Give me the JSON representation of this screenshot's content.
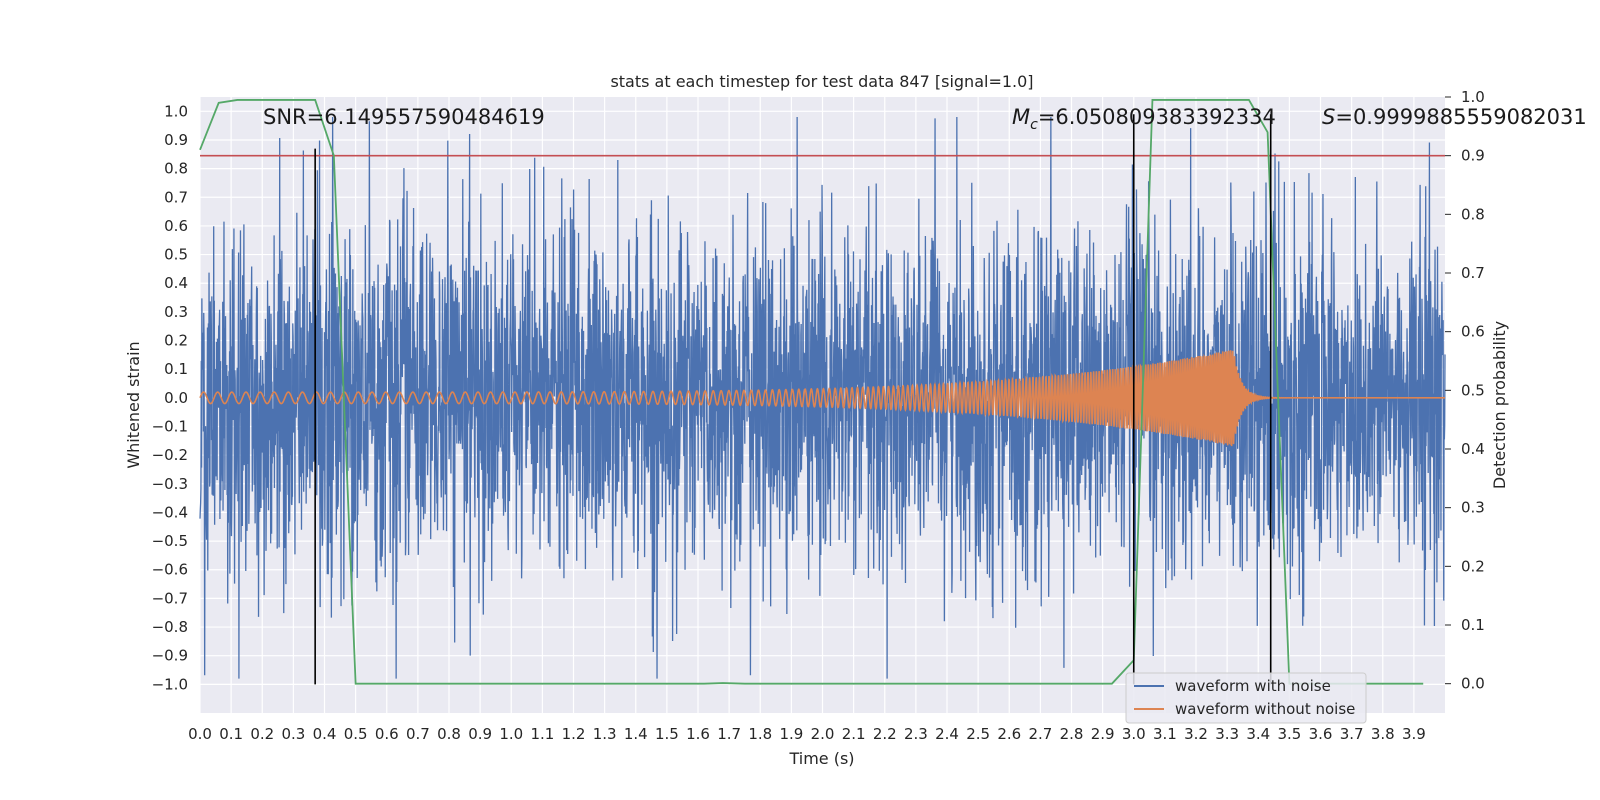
{
  "chart_data": {
    "type": "line",
    "title": "stats at each timestep for test data 847 [signal=1.0]",
    "xlabel": "Time (s)",
    "ylabel_left": "Whitened strain",
    "ylabel_right": "Detection probability",
    "xlim": [
      0.0,
      4.0
    ],
    "ylim_left": [
      -1.1,
      1.05
    ],
    "ylim_right": [
      -0.05,
      1.0
    ],
    "xticks": [
      0.0,
      0.1,
      0.2,
      0.3,
      0.4,
      0.5,
      0.6,
      0.7,
      0.8,
      0.9,
      1.0,
      1.1,
      1.2,
      1.3,
      1.4,
      1.5,
      1.6,
      1.7,
      1.8,
      1.9,
      2.0,
      2.1,
      2.2,
      2.3,
      2.4,
      2.5,
      2.6,
      2.7,
      2.8,
      2.9,
      3.0,
      3.1,
      3.2,
      3.3,
      3.4,
      3.5,
      3.6,
      3.7,
      3.8,
      3.9
    ],
    "xtick_labels": [
      "0.0",
      "0.1",
      "0.2",
      "0.3",
      "0.4",
      "0.5",
      "0.6",
      "0.7",
      "0.8",
      "0.9",
      "1.0",
      "1.1",
      "1.2",
      "1.3",
      "1.4",
      "1.5",
      "1.6",
      "1.7",
      "1.8",
      "1.9",
      "2.0",
      "2.1",
      "2.2",
      "2.3",
      "2.4",
      "2.5",
      "2.6",
      "2.7",
      "2.8",
      "2.9",
      "3.0",
      "3.1",
      "3.2",
      "3.3",
      "3.4",
      "3.5",
      "3.6",
      "3.7",
      "3.8",
      "3.9"
    ],
    "yticks_left": [
      1.0,
      0.9,
      0.8,
      0.7,
      0.6,
      0.5,
      0.4,
      0.3,
      0.2,
      0.1,
      0.0,
      -0.1,
      -0.2,
      -0.3,
      -0.4,
      -0.5,
      -0.6,
      -0.7,
      -0.8,
      -0.9,
      -1.0
    ],
    "ytick_labels_left": [
      "1.0",
      "0.9",
      "0.8",
      "0.7",
      "0.6",
      "0.5",
      "0.4",
      "0.3",
      "0.2",
      "0.1",
      "0.0",
      "−0.1",
      "−0.2",
      "−0.3",
      "−0.4",
      "−0.5",
      "−0.6",
      "−0.7",
      "−0.8",
      "−0.9",
      "−1.0"
    ],
    "yticks_right": [
      0.0,
      0.1,
      0.2,
      0.3,
      0.4,
      0.5,
      0.6,
      0.7,
      0.8,
      0.9,
      1.0
    ],
    "ytick_labels_right": [
      "0.0",
      "0.1",
      "0.2",
      "0.3",
      "0.4",
      "0.5",
      "0.6",
      "0.7",
      "0.8",
      "0.9",
      "1.0"
    ],
    "series": [
      {
        "name": "waveform with noise",
        "axis": "left",
        "color": "#4c72b0",
        "description_values": {
          "t_start": 0.0,
          "t_end": 4.0,
          "approx_std": 0.3,
          "max_abs": 0.98
        }
      },
      {
        "name": "waveform without noise",
        "axis": "left",
        "color": "#dd8452",
        "chirp": {
          "t_start": 0.0,
          "t_merger": 3.32,
          "amp_start": 0.02,
          "amp_peak": 0.17,
          "freq_start": 22,
          "freq_end": 160
        }
      },
      {
        "name": "detection probability",
        "axis": "right",
        "color": "#55a868",
        "x": [
          0.0,
          0.06,
          0.12,
          0.18,
          0.25,
          0.31,
          0.37,
          0.43,
          0.5,
          0.56,
          0.62,
          0.68,
          0.75,
          0.81,
          0.87,
          0.93,
          1.0,
          1.06,
          1.12,
          1.18,
          1.25,
          1.31,
          1.37,
          1.43,
          1.5,
          1.56,
          1.62,
          1.68,
          1.75,
          1.81,
          1.87,
          1.93,
          2.0,
          2.06,
          2.12,
          2.18,
          2.25,
          2.31,
          2.37,
          2.43,
          2.5,
          2.56,
          2.62,
          2.68,
          2.75,
          2.81,
          2.87,
          2.93,
          3.0,
          3.06,
          3.12,
          3.18,
          3.25,
          3.31,
          3.37,
          3.43,
          3.5,
          3.56,
          3.62,
          3.68,
          3.75,
          3.81,
          3.87,
          3.93
        ],
        "y": [
          0.91,
          0.99,
          0.995,
          0.995,
          0.995,
          0.995,
          0.995,
          0.9,
          0.0,
          0.0,
          0.0,
          0.0,
          0.0,
          0.0,
          0.0,
          0.0,
          0.0,
          0.0,
          0.0,
          0.0,
          0.0,
          0.0,
          0.0,
          0.0,
          0.0,
          0.0,
          0.0,
          0.001,
          0.0,
          0.0,
          0.0,
          0.0,
          0.0,
          0.0,
          0.0,
          0.0,
          0.0,
          0.0,
          0.0,
          0.0,
          0.0,
          0.0,
          0.0,
          0.0,
          0.0,
          0.0,
          0.0,
          0.0,
          0.04,
          0.995,
          0.995,
          0.995,
          0.995,
          0.995,
          0.995,
          0.94,
          0.0,
          0.0,
          0.0,
          0.0,
          0.0,
          0.0,
          0.0,
          0.0
        ]
      }
    ],
    "threshold": {
      "axis": "right",
      "value": 0.9,
      "color": "#c44e52"
    },
    "vlines": [
      {
        "x": 0.37,
        "ymin": -1.0,
        "ymax": 0.87,
        "color": "#000000"
      },
      {
        "x": 3.0,
        "ymin": -1.0,
        "ymax": 0.99,
        "color": "#000000"
      },
      {
        "x": 3.44,
        "ymin": -1.0,
        "ymax": 0.99,
        "color": "#000000"
      }
    ],
    "annotations": [
      {
        "prefix": "SNR=",
        "value": "6.149557590484619"
      },
      {
        "prefix": "M",
        "sub": "c",
        "value": "=6.050809383392334"
      },
      {
        "prefix": "S",
        "value": "=0.9999885559082031"
      }
    ],
    "legend_position": "lower-right",
    "grid": true
  }
}
